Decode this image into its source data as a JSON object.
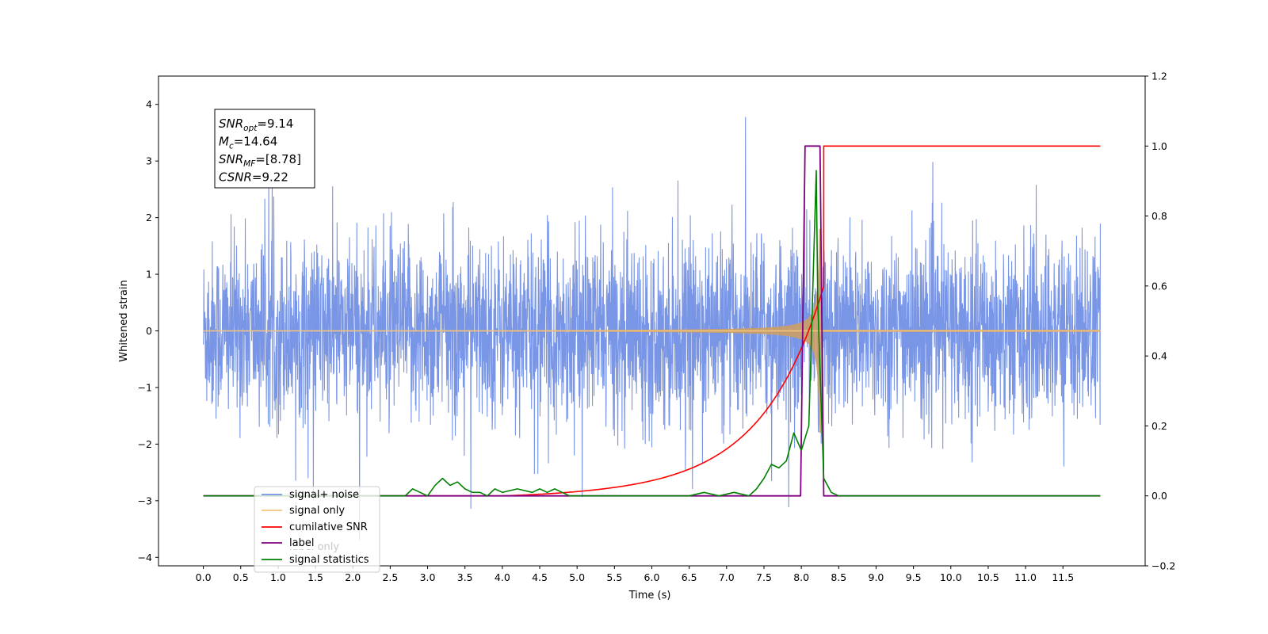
{
  "chart_data": {
    "type": "line",
    "xlabel": "Time (s)",
    "ylabel": "Whitened strain",
    "xlim": [
      -0.6,
      12.6
    ],
    "ylim": [
      -4.15,
      4.5
    ],
    "y2lim": [
      -0.2,
      1.2
    ],
    "x_ticks": [
      "0.0",
      "0.5",
      "1.0",
      "1.5",
      "2.0",
      "2.5",
      "3.0",
      "3.5",
      "4.0",
      "4.5",
      "5.0",
      "5.5",
      "6.0",
      "6.5",
      "7.0",
      "7.5",
      "8.0",
      "8.5",
      "9.0",
      "9.5",
      "10.0",
      "10.5",
      "11.0",
      "11.5"
    ],
    "y_ticks": [
      "4",
      "3",
      "2",
      "1",
      "0",
      "−1",
      "−2",
      "−3",
      "−4"
    ],
    "y2_ticks": [
      "1.2",
      "1.0",
      "0.8",
      "0.6",
      "0.4",
      "0.2",
      "0.0",
      "−0.2"
    ],
    "legend_position": "lower-left",
    "series": [
      {
        "name": "signal+ noise",
        "axis": "left",
        "color": "#7693e6",
        "x_range": [
          0.0,
          12.0
        ],
        "amplitude_typical": 1.6,
        "amplitude_peak": 4.1
      },
      {
        "name": "signal only",
        "axis": "left",
        "color": "#f5c57a",
        "x_range": [
          0.0,
          12.0
        ],
        "merger_time": 8.25,
        "peak_amplitude": 1.8
      },
      {
        "name": "cumilative SNR",
        "axis": "right",
        "x": [
          0.0,
          7.0,
          7.3,
          7.5,
          7.7,
          7.9,
          8.0,
          8.1,
          8.2,
          8.25,
          8.3,
          12.0
        ],
        "y": [
          0.0,
          0.0,
          0.09,
          0.26,
          0.32,
          0.41,
          0.46,
          0.54,
          0.66,
          0.86,
          1.0,
          1.0
        ],
        "color": "#ff0000"
      },
      {
        "name": "label",
        "axis": "right",
        "x": [
          0.0,
          7.99,
          8.05,
          8.25,
          8.3,
          12.0
        ],
        "y": [
          0.0,
          0.0,
          1.0,
          1.0,
          0.0,
          0.0
        ],
        "color": "#800080"
      },
      {
        "name": "label only",
        "axis": "right",
        "hidden": true,
        "color": "#800080"
      },
      {
        "name": "signal statistics",
        "axis": "right",
        "x": [
          0.0,
          2.7,
          2.8,
          2.9,
          3.0,
          3.1,
          3.2,
          3.3,
          3.4,
          3.5,
          3.6,
          3.7,
          3.8,
          3.9,
          4.0,
          4.2,
          4.4,
          4.5,
          4.6,
          4.7,
          4.8,
          4.9,
          5.0,
          6.5,
          6.7,
          6.9,
          7.1,
          7.3,
          7.4,
          7.5,
          7.6,
          7.7,
          7.8,
          7.9,
          8.0,
          8.1,
          8.2,
          8.22,
          8.3,
          8.4,
          8.5,
          12.0
        ],
        "y": [
          0.0,
          0.0,
          0.02,
          0.01,
          0.0,
          0.03,
          0.05,
          0.03,
          0.04,
          0.02,
          0.01,
          0.01,
          0.0,
          0.02,
          0.01,
          0.02,
          0.01,
          0.02,
          0.01,
          0.02,
          0.01,
          0.0,
          0.0,
          0.0,
          0.01,
          0.0,
          0.01,
          0.0,
          0.02,
          0.05,
          0.09,
          0.08,
          0.1,
          0.18,
          0.13,
          0.2,
          0.93,
          0.55,
          0.05,
          0.01,
          0.0,
          0.0
        ],
        "color": "#008000"
      }
    ],
    "annotation": {
      "lines": [
        {
          "main": "SNR",
          "sub": "opt",
          "value": "=9.14"
        },
        {
          "main": "M",
          "sub": "c",
          "value": "=14.64"
        },
        {
          "main": "SNR",
          "sub": "MF",
          "value": "=[8.78]"
        },
        {
          "main": "CSNR",
          "sub": "",
          "value": "=9.22"
        }
      ]
    }
  }
}
